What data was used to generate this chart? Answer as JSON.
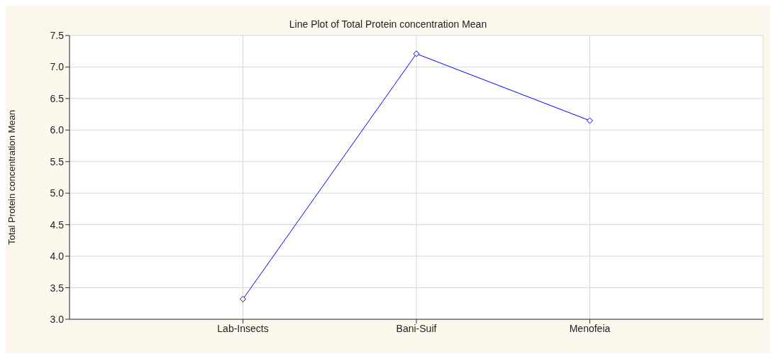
{
  "chart_data": {
    "type": "line",
    "title": "Line Plot of Total Protein concentration Mean",
    "ylabel": "Total Protein concentration Mean",
    "categories": [
      "Lab-Insects",
      "Bani-Suif",
      "Menofeia"
    ],
    "series": [
      {
        "color": "#0000ff",
        "values": [
          3.32,
          7.21,
          6.15
        ]
      }
    ],
    "ylim": [
      3,
      7.5
    ],
    "yticks": [
      {
        "value": 3,
        "label": "3.0"
      },
      {
        "value": 3.5,
        "label": "3.5"
      },
      {
        "value": 4,
        "label": "4.0"
      },
      {
        "value": 4.5,
        "label": "4.5"
      },
      {
        "value": 5,
        "label": "5.0"
      },
      {
        "value": 5.5,
        "label": "5.5"
      },
      {
        "value": 6,
        "label": "6.0"
      },
      {
        "value": 6.5,
        "label": "6.5"
      },
      {
        "value": 7,
        "label": "7.0"
      },
      {
        "value": 7.5,
        "label": "7.5"
      }
    ],
    "grid": true,
    "marker": "diamond",
    "line_style": "solid",
    "legend": false
  }
}
